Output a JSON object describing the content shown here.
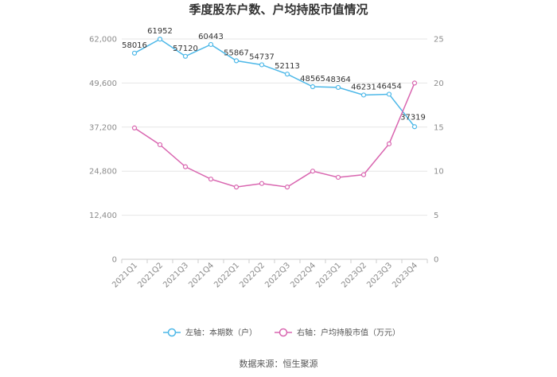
{
  "chart_data": {
    "type": "line",
    "title": "季度股东户数、户均持股市值情况",
    "categories": [
      "2021Q1",
      "2021Q2",
      "2021Q3",
      "2021Q4",
      "2022Q1",
      "2022Q2",
      "2022Q3",
      "2022Q4",
      "2023Q1",
      "2023Q2",
      "2023Q3",
      "2023Q4"
    ],
    "series": [
      {
        "name": "左轴：本期数（户）",
        "axis": "left",
        "color": "#4db8e8",
        "values": [
          58016,
          61952,
          57120,
          60443,
          55867,
          54737,
          52113,
          48565,
          48364,
          46231,
          46454,
          37319
        ],
        "show_labels": true
      },
      {
        "name": "右轴：户均持股市值（万元）",
        "axis": "right",
        "color": "#d966b0",
        "values": [
          14.9,
          13.0,
          10.5,
          9.1,
          8.2,
          8.6,
          8.2,
          10.0,
          9.3,
          9.6,
          13.1,
          20.0
        ],
        "show_labels": false
      }
    ],
    "y_left": {
      "ylim": [
        0,
        62000
      ],
      "ticks": [
        "0",
        "12,400",
        "24,800",
        "37,200",
        "49,600",
        "62,000"
      ],
      "tick_values": [
        0,
        12400,
        24800,
        37200,
        49600,
        62000
      ]
    },
    "y_right": {
      "ylim": [
        0,
        25
      ],
      "ticks": [
        "0",
        "5",
        "10",
        "15",
        "20",
        "25"
      ],
      "tick_values": [
        0,
        5,
        10,
        15,
        20,
        25
      ]
    },
    "grid": true,
    "legend_position": "bottom-center",
    "source": "数据来源：恒生聚源"
  }
}
